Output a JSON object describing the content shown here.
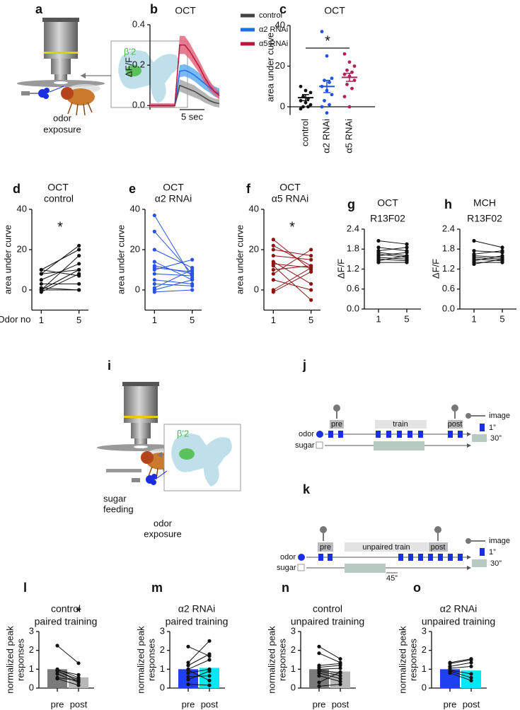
{
  "chart_data": [
    {
      "panel": "b",
      "type": "line",
      "title": "OCT",
      "ylabel": "ΔF/F",
      "x": [
        0,
        1,
        2,
        3,
        4,
        5,
        6,
        7,
        8,
        9,
        10,
        11,
        12,
        13,
        14
      ],
      "xlim": [
        0,
        14
      ],
      "ylim": [
        -0.02,
        0.4
      ],
      "yticks": [
        {
          "value": 0,
          "label": "0.0"
        },
        0.2,
        0.4
      ],
      "scale_bar": {
        "label": "5 sec",
        "length": 5
      },
      "legend": "upper right",
      "series": [
        {
          "name": "control",
          "color": "#444444",
          "band_color": "#a8a8a8",
          "values": [
            0,
            0,
            0,
            0,
            0,
            0,
            0.1,
            0.09,
            0.08,
            0.07,
            0.055,
            0.04,
            0.025,
            0.015,
            0.01
          ],
          "error": [
            0.01,
            0.01,
            0.01,
            0.01,
            0.01,
            0.01,
            0.03,
            0.03,
            0.03,
            0.03,
            0.025,
            0.025,
            0.02,
            0.02,
            0.02
          ]
        },
        {
          "name": "α2 RNAi",
          "color": "#1f6fe6",
          "band_color": "#62aef2",
          "values": [
            0,
            0,
            0,
            0,
            0,
            0,
            0.17,
            0.175,
            0.165,
            0.15,
            0.13,
            0.11,
            0.09,
            0.07,
            0.06
          ],
          "error": [
            0.01,
            0.01,
            0.01,
            0.01,
            0.01,
            0.01,
            0.03,
            0.03,
            0.03,
            0.03,
            0.03,
            0.03,
            0.025,
            0.025,
            0.025
          ]
        },
        {
          "name": "α5 RNAi",
          "color": "#c0143c",
          "band_color": "#e2667e",
          "values": [
            0,
            0,
            0,
            0,
            0,
            0,
            0.3,
            0.3,
            0.27,
            0.23,
            0.19,
            0.14,
            0.1,
            0.07,
            0.05
          ],
          "error": [
            0.01,
            0.01,
            0.01,
            0.01,
            0.01,
            0.01,
            0.045,
            0.045,
            0.04,
            0.035,
            0.03,
            0.03,
            0.025,
            0.02,
            0.02
          ]
        }
      ]
    },
    {
      "panel": "c",
      "type": "strip",
      "title": "OCT",
      "ylabel": "area under curve",
      "ylim": [
        -4,
        40
      ],
      "yticks": [
        0,
        20,
        40
      ],
      "significance": "*",
      "groups": [
        {
          "name": "control",
          "color": "#111111",
          "values": [
            10,
            8,
            7,
            5,
            4,
            3,
            2,
            1,
            0,
            0,
            -1
          ],
          "mean": 4.5,
          "sem": 1.5
        },
        {
          "name": "α2 RNAi",
          "color": "#1f55e6",
          "values": [
            37,
            25,
            14,
            13,
            12,
            10,
            8,
            6,
            3,
            1,
            0,
            -3
          ],
          "mean": 10,
          "sem": 3
        },
        {
          "name": "α5 RNAi",
          "color": "#b0205a",
          "values": [
            26,
            22,
            20,
            18,
            17,
            16,
            15,
            13,
            11,
            9,
            5,
            0
          ],
          "mean": 14.5,
          "sem": 2
        }
      ]
    },
    {
      "panel": "d",
      "type": "paired",
      "title": "OCT",
      "subtitle": "control",
      "ylabel": "area under curve",
      "xlabel": "Odor no",
      "x": [
        1,
        5
      ],
      "xlim": [
        0,
        6
      ],
      "xticks": [
        1,
        5
      ],
      "ylim": [
        -10,
        40
      ],
      "yticks": [
        0,
        20,
        40
      ],
      "color": "#111111",
      "significance": "*",
      "pairs": [
        [
          10,
          20
        ],
        [
          10,
          7
        ],
        [
          8,
          22
        ],
        [
          8,
          10
        ],
        [
          5,
          13
        ],
        [
          3,
          3
        ],
        [
          1,
          0
        ],
        [
          0,
          17
        ],
        [
          0,
          10
        ],
        [
          0,
          0
        ],
        [
          -1,
          8
        ]
      ]
    },
    {
      "panel": "e",
      "type": "paired",
      "title": "OCT",
      "subtitle": "α2 RNAi",
      "ylabel": "area under curve",
      "x": [
        1,
        5
      ],
      "xlim": [
        0,
        6
      ],
      "xticks": [
        1,
        5
      ],
      "ylim": [
        -10,
        40
      ],
      "yticks": [
        0,
        20,
        40
      ],
      "color": "#2b52e0",
      "pairs": [
        [
          37,
          6
        ],
        [
          29,
          8
        ],
        [
          20,
          11
        ],
        [
          14,
          5
        ],
        [
          12,
          8
        ],
        [
          11,
          9
        ],
        [
          10,
          15
        ],
        [
          8,
          7
        ],
        [
          5,
          3
        ],
        [
          3,
          2
        ],
        [
          1,
          10
        ],
        [
          0,
          5
        ],
        [
          -1,
          0
        ]
      ]
    },
    {
      "panel": "f",
      "type": "paired",
      "title": "OCT",
      "subtitle": "α5 RNAi",
      "ylabel": "area under curve",
      "x": [
        1,
        5
      ],
      "xlim": [
        0,
        6
      ],
      "xticks": [
        1,
        5
      ],
      "ylim": [
        -10,
        40
      ],
      "yticks": [
        0,
        20,
        40
      ],
      "color": "#8b1515",
      "significance": "*",
      "pairs": [
        [
          25,
          10
        ],
        [
          22,
          12
        ],
        [
          20,
          17
        ],
        [
          17,
          15
        ],
        [
          14,
          3
        ],
        [
          13,
          11
        ],
        [
          12,
          -5
        ],
        [
          10,
          12
        ],
        [
          8,
          20
        ],
        [
          5,
          0
        ],
        [
          0,
          11
        ],
        [
          -1,
          9
        ]
      ]
    },
    {
      "panel": "g",
      "type": "paired",
      "title": "OCT",
      "subtitle": "R13F02",
      "ylabel": "ΔF/F",
      "x": [
        1,
        5
      ],
      "xlim": [
        -1,
        7
      ],
      "xticks": [
        1,
        5
      ],
      "ylim": [
        0,
        2.4
      ],
      "yticks": [
        {
          "value": 0,
          "label": "0.0"
        },
        0.6,
        1.2,
        1.8,
        2.4
      ],
      "color": "#111111",
      "pairs": [
        [
          2.05,
          1.95
        ],
        [
          1.85,
          1.75
        ],
        [
          1.75,
          1.85
        ],
        [
          1.7,
          1.6
        ],
        [
          1.65,
          1.55
        ],
        [
          1.6,
          1.7
        ],
        [
          1.55,
          1.5
        ],
        [
          1.5,
          1.45
        ],
        [
          1.45,
          1.6
        ],
        [
          1.4,
          1.4
        ]
      ]
    },
    {
      "panel": "h",
      "type": "paired",
      "title": "MCH",
      "subtitle": "R13F02",
      "ylabel": "ΔF/F",
      "x": [
        1,
        5
      ],
      "xlim": [
        -1,
        7
      ],
      "xticks": [
        1,
        5
      ],
      "ylim": [
        0,
        2.4
      ],
      "yticks": [
        {
          "value": 0,
          "label": "0.0"
        },
        0.6,
        1.2,
        1.8,
        2.4
      ],
      "color": "#111111",
      "pairs": [
        [
          2.05,
          1.85
        ],
        [
          1.75,
          1.7
        ],
        [
          1.65,
          1.75
        ],
        [
          1.6,
          1.55
        ],
        [
          1.55,
          1.5
        ],
        [
          1.5,
          1.45
        ],
        [
          1.45,
          1.6
        ],
        [
          1.4,
          1.4
        ],
        [
          1.35,
          1.5
        ]
      ]
    },
    {
      "panel": "l",
      "type": "bar_paired",
      "title": "control",
      "subtitle": "paired training",
      "ylabel": [
        "normalized peak",
        "responses"
      ],
      "categories": [
        "pre",
        "post"
      ],
      "values": [
        1.0,
        0.57
      ],
      "colors": [
        "#7a7a7a",
        "#b8b8b8"
      ],
      "ylim": [
        0,
        3
      ],
      "yticks": [
        0,
        1,
        2,
        3
      ],
      "significance": "*",
      "pairs": [
        [
          2.25,
          1.32
        ],
        [
          1.0,
          0.55
        ],
        [
          0.95,
          0.7
        ],
        [
          0.92,
          0.35
        ],
        [
          0.9,
          0.45
        ],
        [
          0.75,
          0.3
        ],
        [
          0.5,
          0.15
        ],
        [
          0.55,
          0.4
        ]
      ]
    },
    {
      "panel": "m",
      "type": "bar_paired",
      "title": "α2 RNAi",
      "subtitle": "paired training",
      "ylabel": [
        "normalized peak",
        "responses"
      ],
      "categories": [
        "pre",
        "post"
      ],
      "values": [
        1.0,
        1.07
      ],
      "colors": [
        "#1e40f0",
        "#00e8f0"
      ],
      "ylim": [
        0,
        3
      ],
      "yticks": [
        0,
        1,
        2,
        3
      ],
      "pairs": [
        [
          2.2,
          1.7
        ],
        [
          1.35,
          2.5
        ],
        [
          1.2,
          1.8
        ],
        [
          1.0,
          1.5
        ],
        [
          0.8,
          1.0
        ],
        [
          0.6,
          0.65
        ],
        [
          0.45,
          0.9
        ],
        [
          0.2,
          0.15
        ],
        [
          0.95,
          0.4
        ]
      ]
    },
    {
      "panel": "n",
      "type": "bar_paired",
      "title": "control",
      "subtitle": "unpaired training",
      "ylabel": [
        "normalized peak",
        "responses"
      ],
      "categories": [
        "pre",
        "post"
      ],
      "values": [
        1.0,
        0.88
      ],
      "colors": [
        "#7a7a7a",
        "#b8b8b8"
      ],
      "ylim": [
        0,
        3
      ],
      "yticks": [
        0,
        1,
        2,
        3
      ],
      "pairs": [
        [
          2.2,
          1.55
        ],
        [
          1.85,
          1.35
        ],
        [
          1.2,
          1.3
        ],
        [
          1.1,
          1.2
        ],
        [
          1.0,
          1.05
        ],
        [
          0.95,
          0.8
        ],
        [
          0.9,
          0.65
        ],
        [
          0.8,
          0.5
        ],
        [
          0.65,
          0.35
        ],
        [
          0.3,
          0.85
        ],
        [
          0.1,
          0.2
        ]
      ]
    },
    {
      "panel": "o",
      "type": "bar_paired",
      "title": "α2 RNAi",
      "subtitle": "unpaired training",
      "ylabel": [
        "normalized peak",
        "responses"
      ],
      "categories": [
        "pre",
        "post"
      ],
      "values": [
        1.0,
        0.93
      ],
      "colors": [
        "#1e40f0",
        "#00e8f0"
      ],
      "ylim": [
        0,
        3
      ],
      "yticks": [
        0,
        1,
        2,
        3
      ],
      "pairs": [
        [
          1.35,
          1.55
        ],
        [
          1.3,
          1.5
        ],
        [
          1.15,
          1.35
        ],
        [
          1.05,
          1.15
        ],
        [
          0.95,
          0.75
        ],
        [
          0.9,
          0.55
        ],
        [
          0.8,
          0.4
        ]
      ]
    }
  ],
  "diagrams": {
    "a": {
      "panel": "a",
      "region": "β'2",
      "odor_label": [
        "odor",
        "exposure"
      ]
    },
    "i": {
      "panel": "i",
      "region": "β'2",
      "sugar_label": [
        "sugar",
        "feeding"
      ],
      "odor_label": [
        "odor",
        "exposure"
      ]
    },
    "j": {
      "panel": "j",
      "odor": "odor",
      "sugar": "sugar",
      "phases": [
        "pre",
        "train",
        "post"
      ],
      "legend": [
        "image",
        "1”",
        "30”"
      ]
    },
    "k": {
      "panel": "k",
      "odor": "odor",
      "sugar": "sugar",
      "phases": [
        "pre",
        "unpaired train",
        "post"
      ],
      "delay": "45”",
      "legend": [
        "image",
        "1”",
        "30”"
      ]
    }
  }
}
